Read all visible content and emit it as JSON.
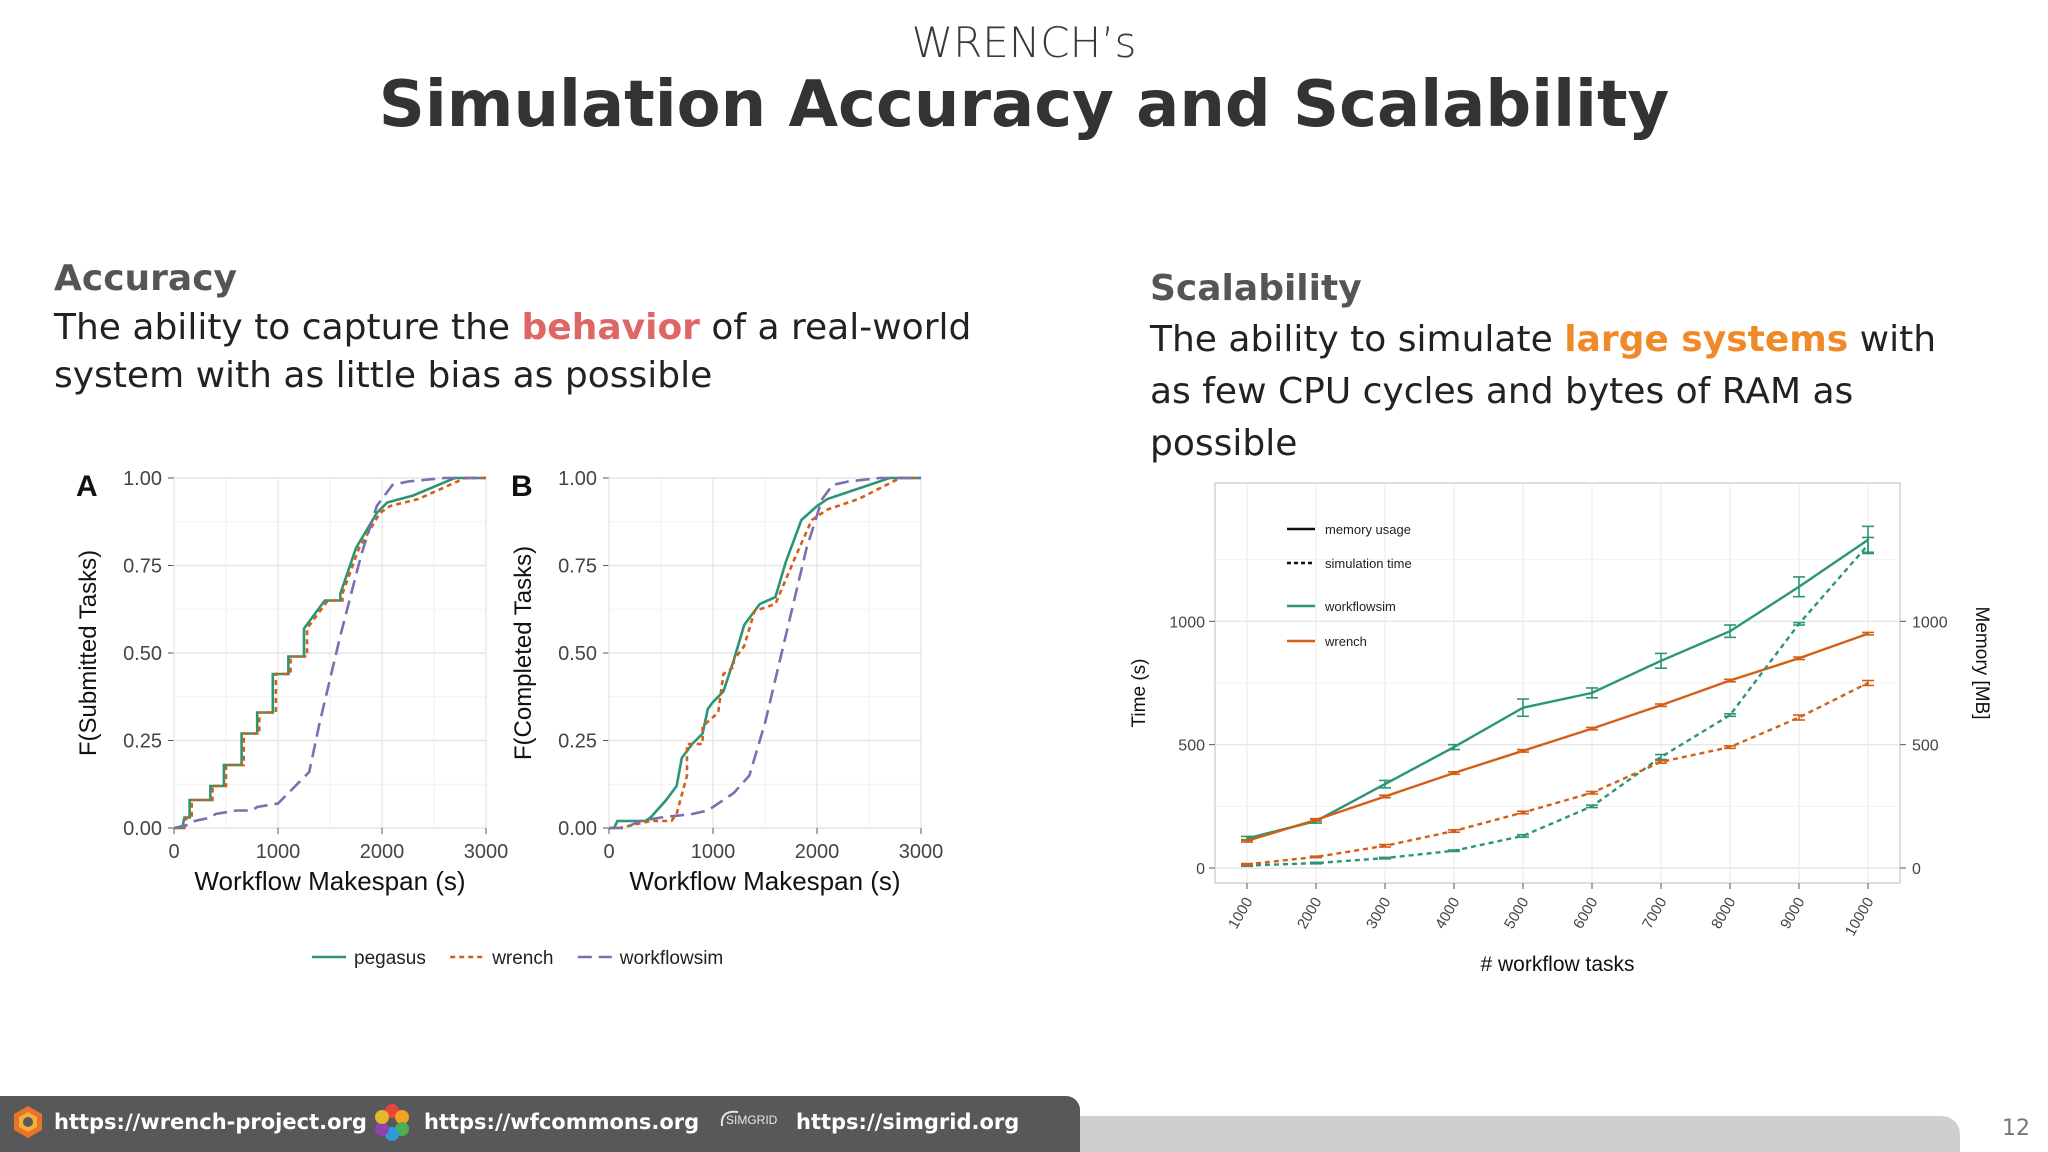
{
  "header": {
    "kicker": "WRENCH’s",
    "title": "Simulation Accuracy and Scalability"
  },
  "accuracy": {
    "heading": "Accuracy",
    "text_before": "The ability to capture the ",
    "highlight": "behavior",
    "text_after": " of a real-world system with as little bias as possible"
  },
  "scalability": {
    "heading": "Scalability",
    "text_before": "The ability to simulate ",
    "highlight": "large systems",
    "text_after": " with as few CPU cycles and bytes of RAM as possible"
  },
  "colors": {
    "green": "#2a9676",
    "orange": "#d35f17",
    "purple": "#7b6fb0",
    "red": "#e06666",
    "accent_orange": "#f08a28"
  },
  "chart_data": [
    {
      "type": "line",
      "panel_label": "A",
      "xlabel": "Workflow Makespan (s)",
      "ylabel": "F(Submitted Tasks)",
      "xlim": [
        0,
        3000
      ],
      "ylim": [
        0,
        1
      ],
      "x_ticks": [
        "0",
        "1000",
        "2000",
        "3000"
      ],
      "y_ticks": [
        "0.00",
        "0.25",
        "0.50",
        "0.75",
        "1.00"
      ],
      "grid": true,
      "series": [
        {
          "name": "pegasus",
          "style": "solid",
          "x": [
            0,
            80,
            100,
            150,
            150,
            350,
            350,
            480,
            480,
            650,
            650,
            800,
            800,
            950,
            950,
            1100,
            1100,
            1250,
            1250,
            1450,
            1600,
            1600,
            1750,
            1950,
            2050,
            2300,
            2700,
            3000
          ],
          "y": [
            0,
            0,
            0.03,
            0.03,
            0.08,
            0.08,
            0.12,
            0.12,
            0.18,
            0.18,
            0.27,
            0.27,
            0.33,
            0.33,
            0.44,
            0.44,
            0.49,
            0.49,
            0.57,
            0.65,
            0.65,
            0.67,
            0.8,
            0.9,
            0.93,
            0.95,
            1.0,
            1.0
          ]
        },
        {
          "name": "wrench",
          "style": "dotted",
          "x": [
            0,
            100,
            120,
            170,
            170,
            370,
            370,
            500,
            500,
            670,
            670,
            820,
            820,
            980,
            980,
            1120,
            1120,
            1280,
            1280,
            1480,
            1620,
            1620,
            1780,
            1980,
            2080,
            2350,
            2800,
            3000
          ],
          "y": [
            0,
            0,
            0.03,
            0.03,
            0.08,
            0.08,
            0.12,
            0.12,
            0.18,
            0.18,
            0.27,
            0.27,
            0.33,
            0.33,
            0.44,
            0.44,
            0.49,
            0.49,
            0.57,
            0.65,
            0.65,
            0.67,
            0.8,
            0.9,
            0.92,
            0.94,
            1.0,
            1.0
          ]
        },
        {
          "name": "workflowsim",
          "style": "dashed",
          "x": [
            0,
            150,
            200,
            350,
            400,
            600,
            750,
            800,
            1000,
            1100,
            1300,
            1400,
            1600,
            1800,
            1950,
            2100,
            2250,
            2600,
            3000
          ],
          "y": [
            0,
            0.01,
            0.02,
            0.03,
            0.04,
            0.05,
            0.05,
            0.06,
            0.07,
            0.1,
            0.16,
            0.3,
            0.55,
            0.78,
            0.92,
            0.98,
            0.99,
            1.0,
            1.0
          ]
        }
      ]
    },
    {
      "type": "line",
      "panel_label": "B",
      "xlabel": "Workflow Makespan (s)",
      "ylabel": "F(Completed Tasks)",
      "xlim": [
        0,
        3000
      ],
      "ylim": [
        0,
        1
      ],
      "x_ticks": [
        "0",
        "1000",
        "2000",
        "3000"
      ],
      "y_ticks": [
        "0.00",
        "0.25",
        "0.50",
        "0.75",
        "1.00"
      ],
      "grid": true,
      "series": [
        {
          "name": "pegasus",
          "style": "solid",
          "x": [
            0,
            50,
            80,
            350,
            400,
            550,
            650,
            700,
            800,
            900,
            950,
            1000,
            1100,
            1200,
            1300,
            1450,
            1600,
            1700,
            1850,
            2000,
            2100,
            2300,
            2700,
            3000
          ],
          "y": [
            0,
            0,
            0.02,
            0.02,
            0.03,
            0.08,
            0.12,
            0.2,
            0.24,
            0.27,
            0.34,
            0.36,
            0.39,
            0.48,
            0.58,
            0.64,
            0.66,
            0.76,
            0.88,
            0.92,
            0.94,
            0.96,
            1.0,
            1.0
          ]
        },
        {
          "name": "wrench",
          "style": "dotted",
          "x": [
            0,
            100,
            400,
            600,
            650,
            750,
            750,
            900,
            900,
            1050,
            1100,
            1200,
            1200,
            1300,
            1400,
            1600,
            1800,
            1950,
            2100,
            2400,
            2800,
            3000
          ],
          "y": [
            0,
            0,
            0.02,
            0.02,
            0.04,
            0.15,
            0.24,
            0.24,
            0.29,
            0.33,
            0.44,
            0.46,
            0.48,
            0.52,
            0.62,
            0.64,
            0.78,
            0.88,
            0.91,
            0.94,
            1.0,
            1.0
          ]
        },
        {
          "name": "workflowsim",
          "style": "dashed",
          "x": [
            0,
            150,
            300,
            500,
            800,
            950,
            1050,
            1200,
            1350,
            1500,
            1700,
            1900,
            2050,
            2150,
            2300,
            2600,
            3000
          ],
          "y": [
            0,
            0,
            0.02,
            0.03,
            0.04,
            0.05,
            0.07,
            0.1,
            0.15,
            0.3,
            0.55,
            0.8,
            0.94,
            0.98,
            0.99,
            1.0,
            1.0
          ]
        }
      ]
    },
    {
      "type": "line",
      "xlabel": "# workflow tasks",
      "ylabel": "Time (s)",
      "y2label": "Memory [MB]",
      "categories": [
        "1000",
        "2000",
        "3000",
        "4000",
        "5000",
        "6000",
        "7000",
        "8000",
        "9000",
        "10000"
      ],
      "ylim": [
        0,
        1500
      ],
      "y_ticks": [
        "0",
        "500",
        "1000"
      ],
      "y2_ticks": [
        "0",
        "500",
        "1000"
      ],
      "grid": true,
      "legend": [
        "memory usage",
        "simulation time",
        "workflowsim",
        "wrench"
      ],
      "series": [
        {
          "name": "workflowsim",
          "metric": "memory usage",
          "style": "solid",
          "values": [
            120,
            190,
            340,
            490,
            650,
            710,
            840,
            960,
            1140,
            1330
          ],
          "errors": [
            8,
            8,
            15,
            10,
            35,
            20,
            30,
            25,
            40,
            55
          ]
        },
        {
          "name": "wrench",
          "metric": "memory usage",
          "style": "solid",
          "values": [
            110,
            195,
            290,
            385,
            475,
            565,
            660,
            760,
            850,
            950
          ],
          "errors": [
            5,
            5,
            5,
            5,
            5,
            5,
            5,
            5,
            5,
            5
          ]
        },
        {
          "name": "workflowsim",
          "metric": "simulation time",
          "style": "dashed",
          "values": [
            10,
            20,
            40,
            70,
            130,
            250,
            450,
            620,
            990,
            1310
          ],
          "errors": [
            3,
            3,
            3,
            3,
            5,
            5,
            10,
            5,
            5,
            30
          ]
        },
        {
          "name": "wrench",
          "metric": "simulation time",
          "style": "dashed",
          "values": [
            15,
            45,
            90,
            150,
            225,
            305,
            430,
            490,
            610,
            750
          ],
          "errors": [
            3,
            3,
            5,
            5,
            5,
            5,
            5,
            5,
            10,
            10
          ]
        }
      ]
    }
  ],
  "footer": {
    "links": [
      "https://wrench-project.org",
      "https://wfcommons.org",
      "https://simgrid.org"
    ],
    "simgrid_logo_text": "SIMGRID",
    "page_number": "12"
  }
}
